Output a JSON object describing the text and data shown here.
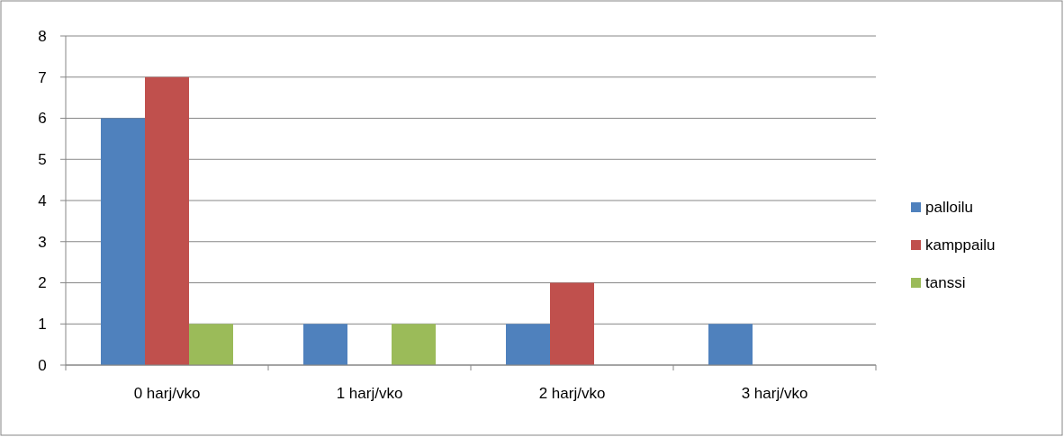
{
  "chart_data": {
    "type": "bar",
    "categories": [
      "0 harj/vko",
      "1 harj/vko",
      "2 harj/vko",
      "3 harj/vko"
    ],
    "series": [
      {
        "name": "palloilu",
        "color": "#4f81bd",
        "values": [
          6,
          1,
          1,
          1
        ]
      },
      {
        "name": "kamppailu",
        "color": "#c0504d",
        "values": [
          7,
          0,
          2,
          0
        ]
      },
      {
        "name": "tanssi",
        "color": "#9bbb59",
        "values": [
          1,
          1,
          0,
          0
        ]
      }
    ],
    "ylim": [
      0,
      8
    ],
    "yticks": [
      0,
      1,
      2,
      3,
      4,
      5,
      6,
      7,
      8
    ],
    "grid": "y",
    "legend": "right"
  }
}
